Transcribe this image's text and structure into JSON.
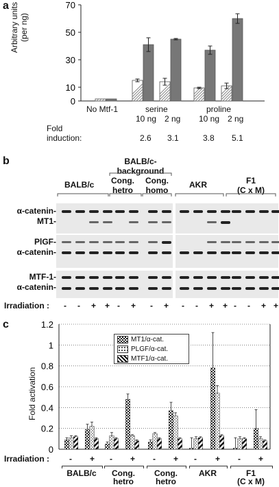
{
  "panel_a": {
    "letter": "a",
    "ylabel_line1": "Arbitrary units",
    "ylabel_line2": "(per ng)",
    "yticks": [
      "0",
      "10",
      "30",
      "50",
      "70"
    ],
    "groups": [
      "No Mtf-1",
      "serine",
      "proline"
    ],
    "doses": [
      "10 ng",
      "2 ng",
      "10 ng",
      "2 ng"
    ],
    "fold_label_line1": "Fold",
    "fold_label_line2": "induction:",
    "fold_values": [
      "2.6",
      "3.1",
      "3.8",
      "5.1"
    ]
  },
  "panel_b": {
    "letter": "b",
    "groups": {
      "balbc": "BALB/c",
      "background": "BALB/c-\nbackground",
      "cong_hetro": "Cong.\nhetro",
      "cong_homo": "Cong.\nhomo",
      "akr": "AKR",
      "f1": "F1\n(C x M)"
    },
    "row_labels": [
      "α-catenin-",
      "MT1-",
      "PlGF-",
      "α-catenin-",
      "MTF-1-",
      "α-catenin-"
    ],
    "irradiation_label": "Irradiation :",
    "irradiation_signs": [
      "-",
      "-",
      "+",
      "+",
      "-",
      "+",
      "-",
      "+",
      "-",
      "-",
      "+",
      "+",
      "-",
      "-",
      "+",
      "+"
    ]
  },
  "panel_c": {
    "letter": "c",
    "ylabel": "Fold activation",
    "irradiation_label": "Irradiation :",
    "signs": [
      "-",
      "+",
      "-",
      "+",
      "-",
      "+",
      "-",
      "+",
      "-",
      "+"
    ],
    "group_labels": [
      "BALB/c",
      "Cong.\nhetro",
      "Cong.\nhetro",
      "AKR",
      "F1\n(C x M)"
    ]
  },
  "chart_data": [
    {
      "type": "bar",
      "ylabel": "Arbitrary units (per ng)",
      "yticks": [
        0,
        10,
        30,
        50,
        70
      ],
      "ylim": [
        0,
        70
      ],
      "categories": [
        "No Mtf-1",
        "serine 10 ng",
        "serine 2 ng",
        "proline 10 ng",
        "proline 2 ng"
      ],
      "series": [
        {
          "pattern": "hatched",
          "values": [
            1.5,
            15,
            14,
            9.5,
            11
          ]
        },
        {
          "pattern": "solid-grey",
          "values": [
            1.5,
            41,
            45,
            37,
            60
          ]
        }
      ],
      "errors": [
        [
          0,
          1,
          2.5,
          0.5,
          2
        ],
        [
          0,
          5,
          0.5,
          3,
          3.5
        ]
      ]
    },
    {
      "type": "bar",
      "ylabel": "Fold activation",
      "ylim": [
        0,
        1.2
      ],
      "yticks": [
        0,
        0.2,
        0.4,
        0.6,
        0.8,
        1,
        1.2
      ],
      "grid": true,
      "legend_position": "top-right",
      "categories": [
        "BALB/c -",
        "BALB/c +",
        "Cong. hetro -",
        "Cong. hetro +",
        "Cong. hetro -",
        "Cong. hetro +",
        "AKR -",
        "AKR +",
        "F1 (C x M) -",
        "F1 (C x M) +"
      ],
      "series": [
        {
          "name": "MT1/α-cat.",
          "values": [
            0.09,
            0.19,
            0.05,
            0.48,
            0.07,
            0.37,
            0.01,
            0.78,
            0.01,
            0.2
          ]
        },
        {
          "name": "PLGF/α-cat.",
          "values": [
            0.11,
            0.22,
            0.13,
            0.13,
            0.15,
            0.32,
            0.1,
            0.54,
            0.1,
            0.1
          ]
        },
        {
          "name": "MTF1/α-cat.",
          "values": [
            0.12,
            0.1,
            0.1,
            0.08,
            0.1,
            0.1,
            0.11,
            0.13,
            0.1,
            0.08
          ]
        }
      ]
    }
  ]
}
